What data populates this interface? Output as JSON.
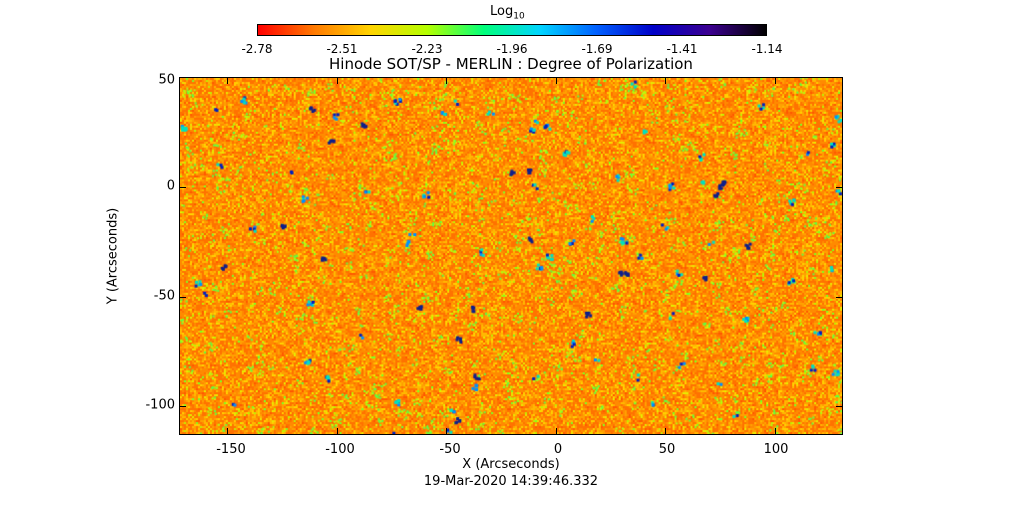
{
  "colorbar": {
    "title_main": "Log",
    "title_sub": "10",
    "ticks": [
      "-2.78",
      "-2.51",
      "-2.23",
      "-1.96",
      "-1.69",
      "-1.41",
      "-1.14"
    ],
    "min": -2.78,
    "max": -1.14,
    "colors": [
      "#ff0000",
      "#ff7a00",
      "#ffd400",
      "#b4ff00",
      "#00ff7a",
      "#00d4ff",
      "#0060ff",
      "#0000c8",
      "#3c0090",
      "#000000"
    ]
  },
  "title": "Hinode SOT/SP - MERLIN : Degree of Polarization",
  "xlabel": "X (Arcseconds)",
  "ylabel": "Y (Arcseconds)",
  "date": "19-Mar-2020 14:39:46.332",
  "xaxis": {
    "range": [
      -172,
      131
    ],
    "ticks": [
      -150,
      -100,
      -50,
      0,
      50,
      100
    ],
    "tick_labels": [
      "-150",
      "-100",
      "-50",
      "0",
      "50",
      "100"
    ]
  },
  "yaxis": {
    "range": [
      -113,
      50
    ],
    "ticks": [
      50,
      0,
      -50,
      -100
    ],
    "tick_labels": [
      "50",
      "0",
      "-50",
      "-100"
    ]
  }
}
